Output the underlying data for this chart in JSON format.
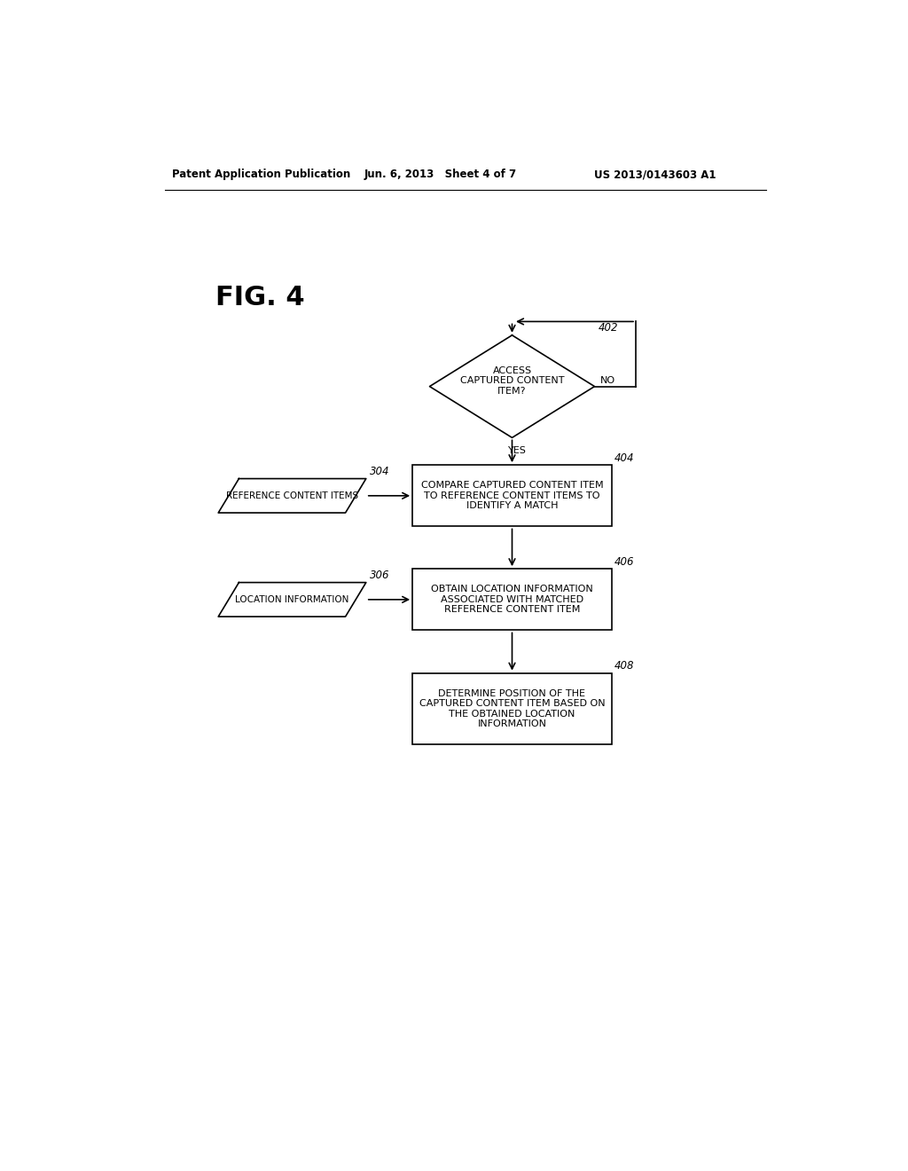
{
  "bg_color": "#ffffff",
  "header_left": "Patent Application Publication",
  "header_mid": "Jun. 6, 2013   Sheet 4 of 7",
  "header_right": "US 2013/0143603 A1",
  "fig_label": "FIG. 4",
  "diamond_label": "ACCESS\nCAPTURED CONTENT\nITEM?",
  "ref_402": "402",
  "no_label": "NO",
  "yes_label": "YES",
  "box_304_label": "REFERENCE CONTENT ITEMS",
  "ref_304": "304",
  "box_306_label": "LOCATION INFORMATION",
  "ref_306": "306",
  "box_404_label": "COMPARE CAPTURED CONTENT ITEM\nTO REFERENCE CONTENT ITEMS TO\nIDENTIFY A MATCH",
  "ref_404": "404",
  "box_406_label": "OBTAIN LOCATION INFORMATION\nASSOCIATED WITH MATCHED\nREFERENCE CONTENT ITEM",
  "ref_406": "406",
  "box_408_label": "DETERMINE POSITION OF THE\nCAPTURED CONTENT ITEM BASED ON\nTHE OBTAINED LOCATION\nINFORMATION",
  "ref_408": "408",
  "line_color": "#000000",
  "text_color": "#000000",
  "font_size_box": 8.0,
  "font_size_header": 8.5,
  "font_size_ref": 8.5,
  "font_size_figlabel": 22
}
